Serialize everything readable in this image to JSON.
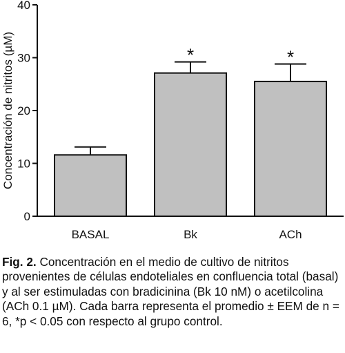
{
  "chart_data": {
    "type": "bar",
    "categories": [
      "BASAL",
      "Bk",
      "ACh"
    ],
    "values": [
      11.6,
      27.1,
      25.5
    ],
    "errors": [
      1.5,
      2.1,
      3.3
    ],
    "significance": [
      "",
      "*",
      "*"
    ],
    "ylabel": "Concentración de nitritos (µM)",
    "xlabel": "",
    "ylim": [
      0,
      40
    ],
    "yticks": [
      0,
      10,
      20,
      30,
      40
    ],
    "ytick_labels": [
      "0",
      "10",
      "20",
      "30",
      "40"
    ],
    "bar_color": "#c0c0c0",
    "edge_color": "#111111"
  },
  "caption": {
    "label": "Fig. 2.",
    "text": " Concentración en el medio de cultivo de nitritos provenientes de células endoteliales en confluencia total (basal) y al ser estimuladas con bradicinina (Bk 10 nM) o acetilcolina (ACh 0.1 µM). Cada barra representa el promedio ± EEM de n = 6, *p < 0.05 con respecto al grupo control."
  }
}
